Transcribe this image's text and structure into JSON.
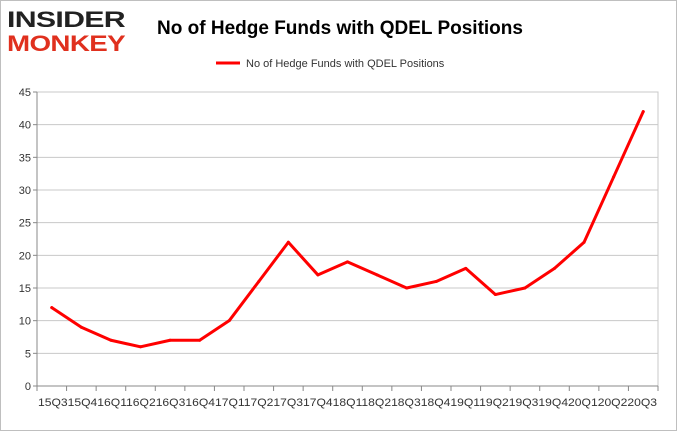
{
  "logo": {
    "line1": "INSIDER",
    "line2": "MONKEY",
    "color1": "#222222",
    "color2": "#e0301e"
  },
  "chart_data": {
    "type": "line",
    "title": "No of Hedge Funds with QDEL Positions",
    "legend_position": "top-center",
    "xlabel": "",
    "ylabel": "",
    "ylim": [
      0,
      45
    ],
    "yticks": [
      0,
      5,
      10,
      15,
      20,
      25,
      30,
      35,
      40,
      45
    ],
    "grid": true,
    "categories": [
      "2015Q3",
      "2015Q4",
      "2016Q1",
      "2016Q2",
      "2016Q3",
      "2016Q4",
      "2017Q1",
      "2017Q2",
      "2017Q3",
      "2017Q4",
      "2018Q1",
      "2018Q2",
      "2018Q3",
      "2018Q4",
      "2019Q1",
      "2019Q2",
      "2019Q3",
      "2019Q4",
      "2020Q1",
      "2020Q2",
      "2020Q3"
    ],
    "x_axis_text": "15Q315Q416Q116Q216Q316Q417Q117Q217Q317Q418Q118Q218Q318Q419Q119Q219Q319Q420Q120Q220Q3",
    "series": [
      {
        "name": "No of Hedge Funds with QDEL Positions",
        "color": "#ff0000",
        "values": [
          12,
          9,
          7,
          6,
          7,
          7,
          10,
          16,
          22,
          17,
          19,
          17,
          15,
          16,
          18,
          14,
          15,
          18,
          22,
          32,
          42
        ]
      }
    ]
  }
}
